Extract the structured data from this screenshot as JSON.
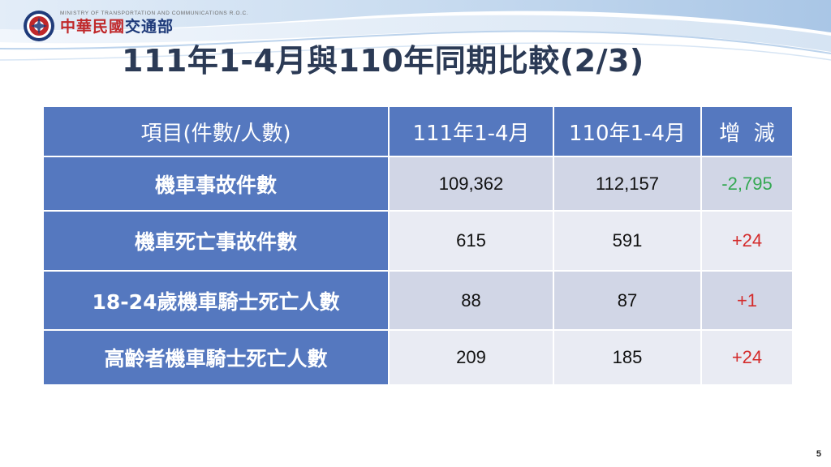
{
  "header": {
    "ministry_en": "MINISTRY OF TRANSPORTATION AND COMMUNICATIONS R.O.C.",
    "ministry_zh_part1": "中華民國",
    "ministry_zh_part2": "交通部"
  },
  "title": "111年1-4月與110年同期比較(2/3)",
  "table": {
    "headers": [
      "項目(件數/人數)",
      "111年1-4月",
      "110年1-4月",
      "增  減"
    ],
    "rows": [
      {
        "label": "機車事故件數",
        "current": "109,362",
        "previous": "112,157",
        "change": "-2,795"
      },
      {
        "label": "機車死亡事故件數",
        "current": "615",
        "previous": "591",
        "change": "+24"
      },
      {
        "label": "18-24歲機車騎士死亡人數",
        "current": "88",
        "previous": "87",
        "change": "+1"
      },
      {
        "label": "高齡者機車騎士死亡人數",
        "current": "209",
        "previous": "185",
        "change": "+24"
      }
    ]
  },
  "colors": {
    "header_blue": "#5578bf",
    "row_light": "#e9ebf3",
    "row_dark": "#d1d6e6",
    "decrease_green": "#33a852",
    "increase_red": "#d42b2b"
  },
  "page_number": "5"
}
